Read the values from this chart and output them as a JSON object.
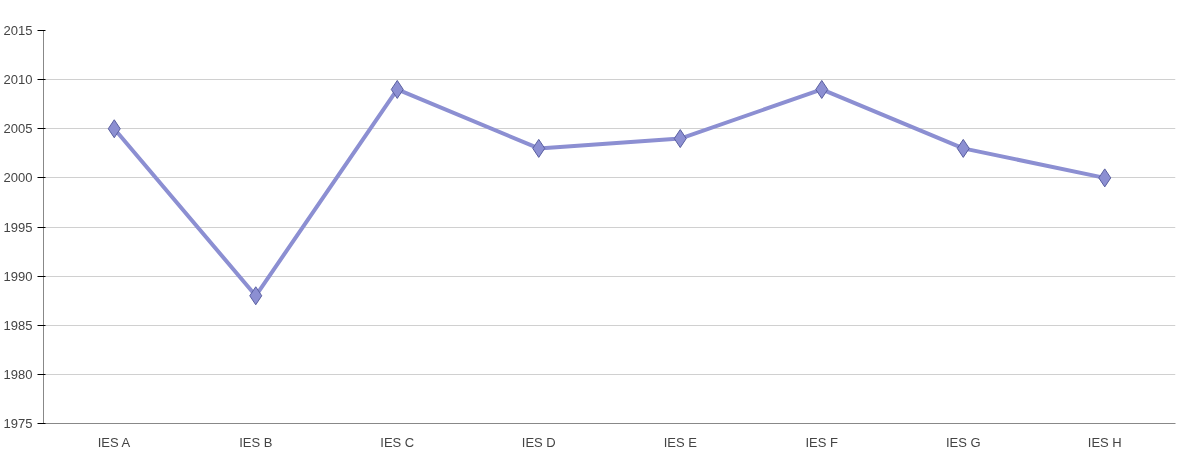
{
  "chart_data": {
    "type": "line",
    "categories": [
      "IES A",
      "IES B",
      "IES C",
      "IES D",
      "IES E",
      "IES F",
      "IES G",
      "IES H"
    ],
    "series": [
      {
        "color": "#8c8fd2",
        "values": [
          2005,
          1988,
          2009,
          2003,
          2004,
          2009,
          2003,
          2000
        ]
      }
    ],
    "ylim": [
      1975,
      2015
    ],
    "yticks": [
      1975,
      1980,
      1985,
      1990,
      1995,
      2000,
      2005,
      2010,
      2015
    ],
    "grid": "y",
    "marker": "diamond",
    "line_style": "solid"
  }
}
